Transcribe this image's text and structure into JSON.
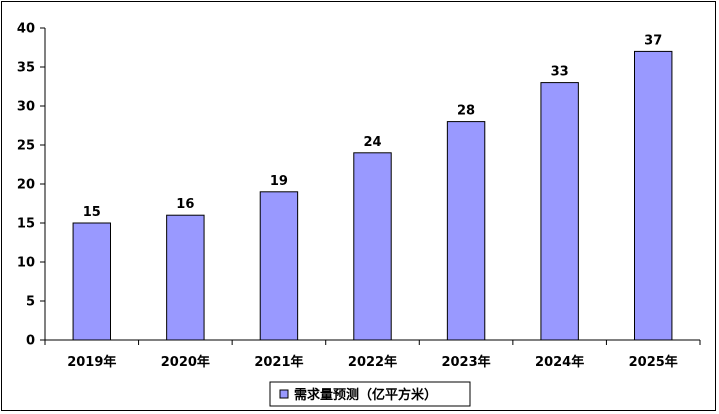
{
  "chart_data": {
    "type": "bar",
    "categories": [
      "2019年",
      "2020年",
      "2021年",
      "2022年",
      "2023年",
      "2024年",
      "2025年"
    ],
    "series": [
      {
        "name": "需求量预测（亿平方米）",
        "values": [
          15,
          16,
          19,
          24,
          28,
          33,
          37
        ]
      }
    ],
    "yticks": [
      0,
      5,
      10,
      15,
      20,
      25,
      30,
      35,
      40
    ],
    "ylim": [
      0,
      40
    ],
    "grid": false,
    "legend": "bottom",
    "data_labels": true,
    "colors": {
      "bar_fill": "#9999FF",
      "bar_stroke": "#000000"
    }
  }
}
